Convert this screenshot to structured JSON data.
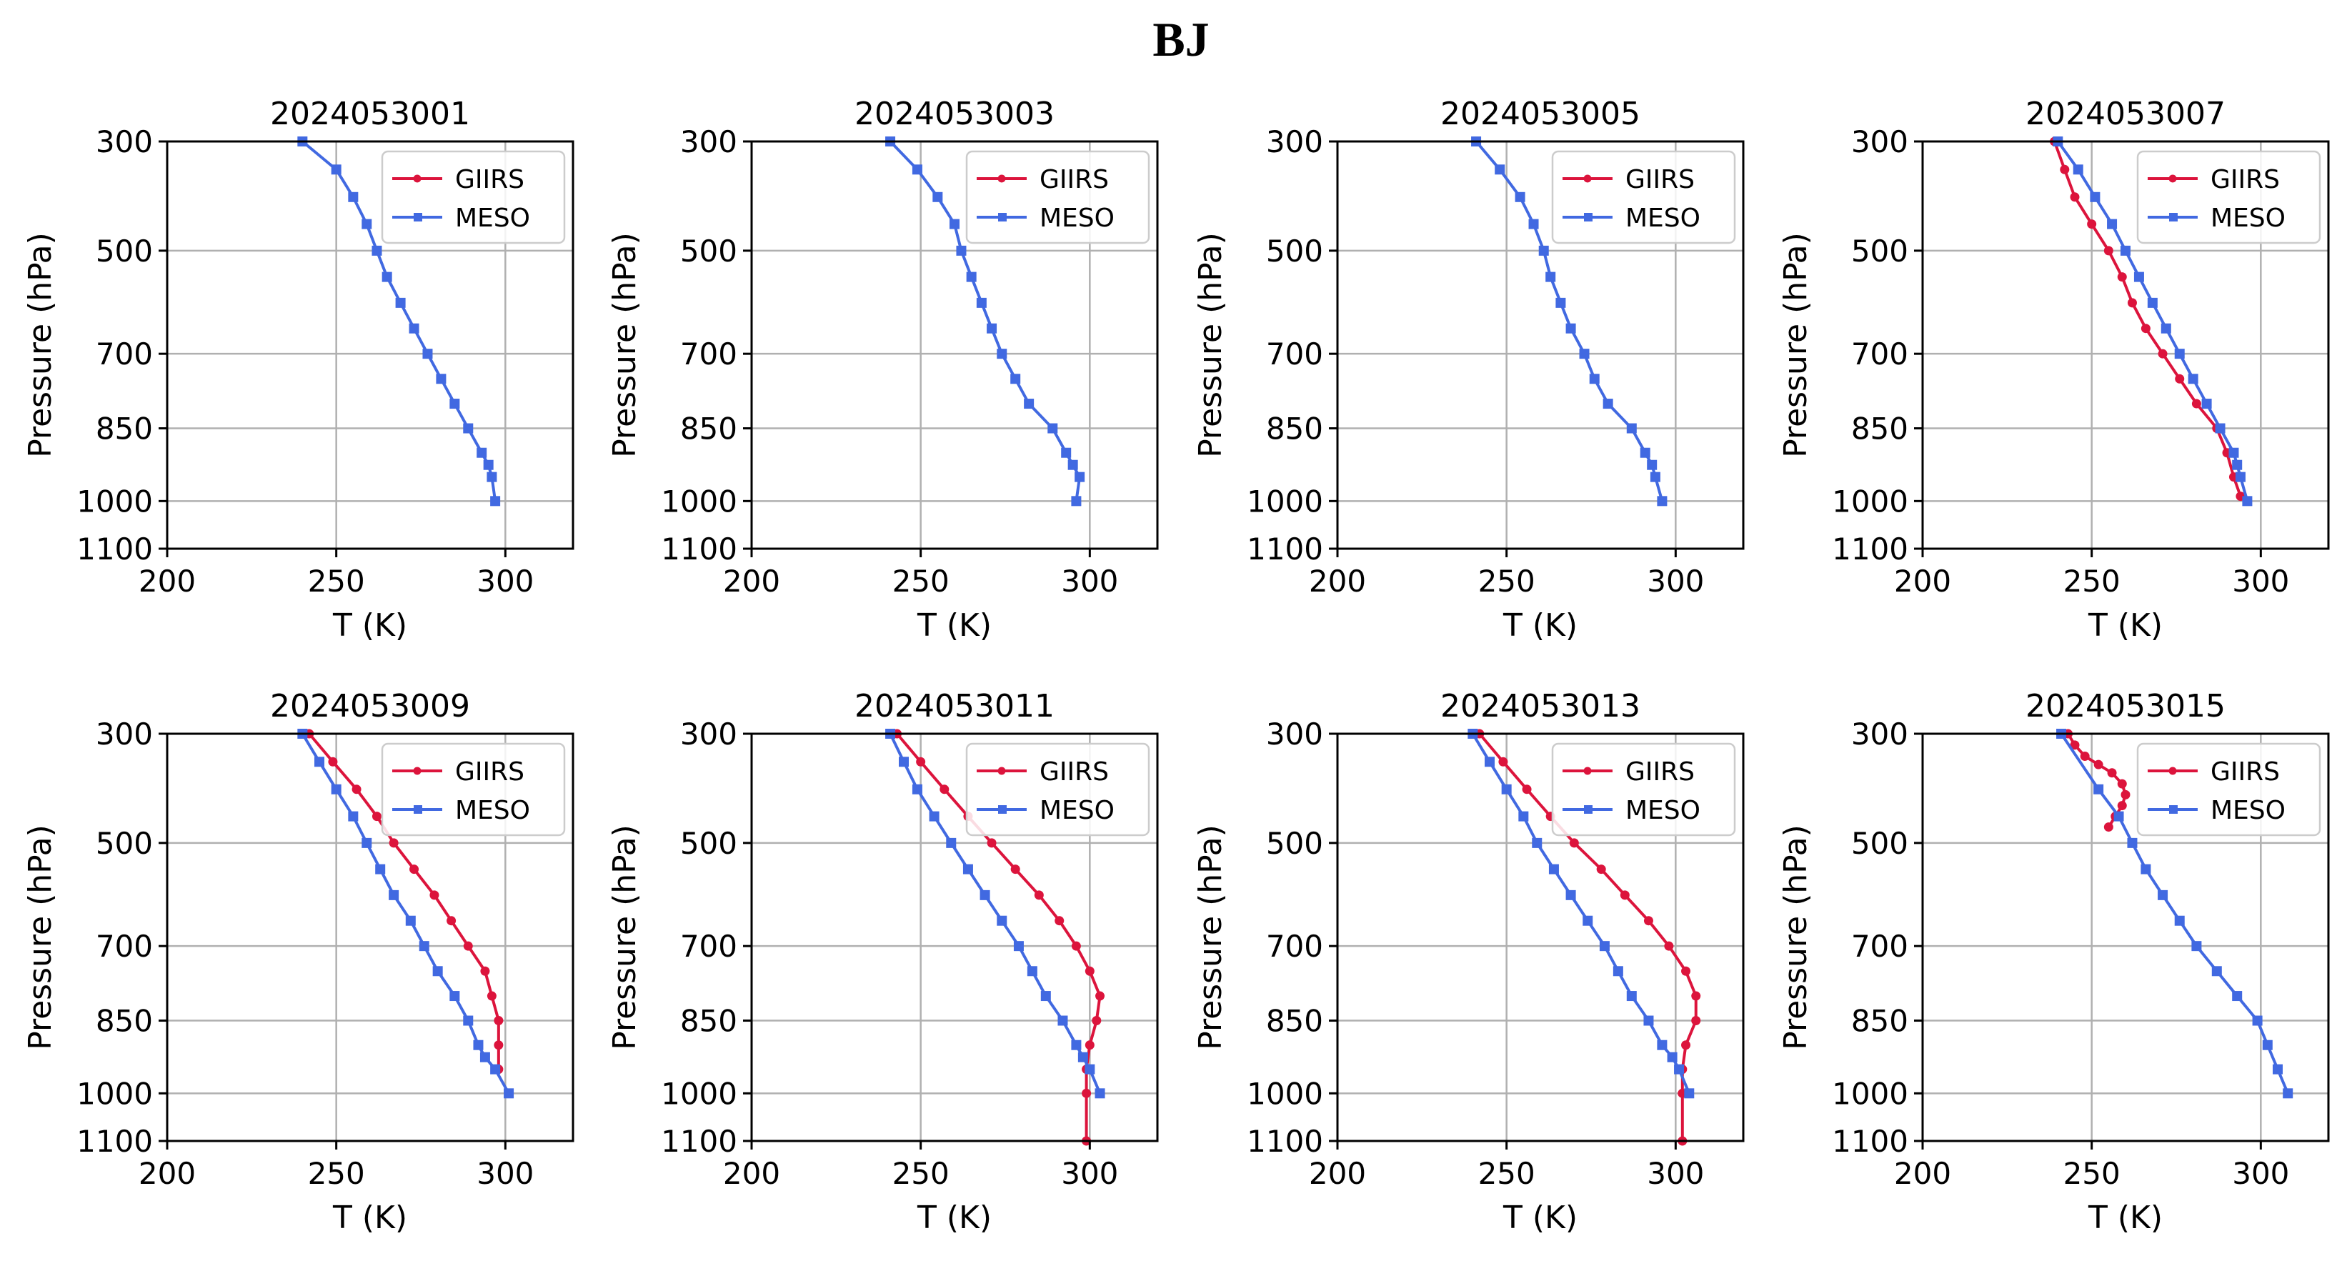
{
  "figure_title": "BJ",
  "colors": {
    "GIIRS": "#dc143c",
    "MESO": "#4169e1"
  },
  "chart_data": [
    {
      "type": "line",
      "title": "2024053001",
      "xlabel": "T (K)",
      "ylabel": "Pressure (hPa)",
      "xlim": [
        200,
        320
      ],
      "ylim": [
        1100,
        300
      ],
      "xticks": [
        200,
        250,
        300
      ],
      "yticks": [
        300,
        500,
        700,
        850,
        1000,
        1100
      ],
      "legend": [
        "GIIRS",
        "MESO"
      ],
      "legend_position": "upper-right",
      "grid": true,
      "series": [
        {
          "name": "MESO",
          "marker": "square",
          "T": [
            240,
            250,
            255,
            259,
            262,
            265,
            269,
            273,
            277,
            281,
            285,
            289,
            293,
            295,
            296,
            297
          ],
          "p": [
            300,
            350,
            400,
            450,
            500,
            550,
            600,
            650,
            700,
            750,
            800,
            850,
            900,
            925,
            950,
            1000
          ]
        }
      ]
    },
    {
      "type": "line",
      "title": "2024053003",
      "xlabel": "T (K)",
      "ylabel": "Pressure (hPa)",
      "xlim": [
        200,
        320
      ],
      "ylim": [
        1100,
        300
      ],
      "xticks": [
        200,
        250,
        300
      ],
      "yticks": [
        300,
        500,
        700,
        850,
        1000,
        1100
      ],
      "legend": [
        "GIIRS",
        "MESO"
      ],
      "legend_position": "upper-right",
      "grid": true,
      "series": [
        {
          "name": "MESO",
          "marker": "square",
          "T": [
            241,
            249,
            255,
            260,
            262,
            265,
            268,
            271,
            274,
            278,
            282,
            289,
            293,
            295,
            297,
            296
          ],
          "p": [
            300,
            350,
            400,
            450,
            500,
            550,
            600,
            650,
            700,
            750,
            800,
            850,
            900,
            925,
            950,
            1000
          ]
        }
      ]
    },
    {
      "type": "line",
      "title": "2024053005",
      "xlabel": "T (K)",
      "ylabel": "Pressure (hPa)",
      "xlim": [
        200,
        320
      ],
      "ylim": [
        1100,
        300
      ],
      "xticks": [
        200,
        250,
        300
      ],
      "yticks": [
        300,
        500,
        700,
        850,
        1000,
        1100
      ],
      "legend": [
        "GIIRS",
        "MESO"
      ],
      "legend_position": "upper-right",
      "grid": true,
      "series": [
        {
          "name": "MESO",
          "marker": "square",
          "T": [
            241,
            248,
            254,
            258,
            261,
            263,
            266,
            269,
            273,
            276,
            280,
            287,
            291,
            293,
            294,
            296
          ],
          "p": [
            300,
            350,
            400,
            450,
            500,
            550,
            600,
            650,
            700,
            750,
            800,
            850,
            900,
            925,
            950,
            1000
          ]
        }
      ]
    },
    {
      "type": "line",
      "title": "2024053007",
      "xlabel": "T (K)",
      "ylabel": "Pressure (hPa)",
      "xlim": [
        200,
        320
      ],
      "ylim": [
        1100,
        300
      ],
      "xticks": [
        200,
        250,
        300
      ],
      "yticks": [
        300,
        500,
        700,
        850,
        1000,
        1100
      ],
      "legend": [
        "GIIRS",
        "MESO"
      ],
      "legend_position": "upper-right",
      "grid": true,
      "series": [
        {
          "name": "GIIRS",
          "marker": "dot",
          "T": [
            239,
            242,
            245,
            250,
            255,
            259,
            262,
            266,
            271,
            276,
            281,
            287,
            290,
            292,
            294
          ],
          "p": [
            300,
            350,
            400,
            450,
            500,
            550,
            600,
            650,
            700,
            750,
            800,
            850,
            900,
            950,
            990
          ]
        },
        {
          "name": "MESO",
          "marker": "square",
          "T": [
            240,
            246,
            251,
            256,
            260,
            264,
            268,
            272,
            276,
            280,
            284,
            288,
            292,
            293,
            294,
            296
          ],
          "p": [
            300,
            350,
            400,
            450,
            500,
            550,
            600,
            650,
            700,
            750,
            800,
            850,
            900,
            925,
            950,
            1000
          ]
        }
      ]
    },
    {
      "type": "line",
      "title": "2024053009",
      "xlabel": "T (K)",
      "ylabel": "Pressure (hPa)",
      "xlim": [
        200,
        320
      ],
      "ylim": [
        1100,
        300
      ],
      "xticks": [
        200,
        250,
        300
      ],
      "yticks": [
        300,
        500,
        700,
        850,
        1000,
        1100
      ],
      "legend": [
        "GIIRS",
        "MESO"
      ],
      "legend_position": "upper-right",
      "grid": true,
      "series": [
        {
          "name": "GIIRS",
          "marker": "dot",
          "T": [
            242,
            249,
            256,
            262,
            267,
            273,
            279,
            284,
            289,
            294,
            296,
            298,
            298,
            298
          ],
          "p": [
            300,
            350,
            400,
            450,
            500,
            550,
            600,
            650,
            700,
            750,
            800,
            850,
            900,
            950
          ]
        },
        {
          "name": "MESO",
          "marker": "square",
          "T": [
            240,
            245,
            250,
            255,
            259,
            263,
            267,
            272,
            276,
            280,
            285,
            289,
            292,
            294,
            297,
            301
          ],
          "p": [
            300,
            350,
            400,
            450,
            500,
            550,
            600,
            650,
            700,
            750,
            800,
            850,
            900,
            925,
            950,
            1000
          ]
        }
      ]
    },
    {
      "type": "line",
      "title": "2024053011",
      "xlabel": "T (K)",
      "ylabel": "Pressure (hPa)",
      "xlim": [
        200,
        320
      ],
      "ylim": [
        1100,
        300
      ],
      "xticks": [
        200,
        250,
        300
      ],
      "yticks": [
        300,
        500,
        700,
        850,
        1000,
        1100
      ],
      "legend": [
        "GIIRS",
        "MESO"
      ],
      "legend_position": "upper-right",
      "grid": true,
      "series": [
        {
          "name": "GIIRS",
          "marker": "dot",
          "T": [
            243,
            250,
            257,
            264,
            271,
            278,
            285,
            291,
            296,
            300,
            303,
            302,
            300,
            299,
            299,
            299
          ],
          "p": [
            300,
            350,
            400,
            450,
            500,
            550,
            600,
            650,
            700,
            750,
            800,
            850,
            900,
            950,
            1000,
            1100
          ]
        },
        {
          "name": "MESO",
          "marker": "square",
          "T": [
            241,
            245,
            249,
            254,
            259,
            264,
            269,
            274,
            279,
            283,
            287,
            292,
            296,
            298,
            300,
            303
          ],
          "p": [
            300,
            350,
            400,
            450,
            500,
            550,
            600,
            650,
            700,
            750,
            800,
            850,
            900,
            925,
            950,
            1000
          ]
        }
      ]
    },
    {
      "type": "line",
      "title": "2024053013",
      "xlabel": "T (K)",
      "ylabel": "Pressure (hPa)",
      "xlim": [
        200,
        320
      ],
      "ylim": [
        1100,
        300
      ],
      "xticks": [
        200,
        250,
        300
      ],
      "yticks": [
        300,
        500,
        700,
        850,
        1000,
        1100
      ],
      "legend": [
        "GIIRS",
        "MESO"
      ],
      "legend_position": "upper-right",
      "grid": true,
      "series": [
        {
          "name": "GIIRS",
          "marker": "dot",
          "T": [
            242,
            249,
            256,
            263,
            270,
            278,
            285,
            292,
            298,
            303,
            306,
            306,
            303,
            302,
            302,
            302
          ],
          "p": [
            300,
            350,
            400,
            450,
            500,
            550,
            600,
            650,
            700,
            750,
            800,
            850,
            900,
            950,
            1000,
            1100
          ]
        },
        {
          "name": "MESO",
          "marker": "square",
          "T": [
            240,
            245,
            250,
            255,
            259,
            264,
            269,
            274,
            279,
            283,
            287,
            292,
            296,
            299,
            301,
            304
          ],
          "p": [
            300,
            350,
            400,
            450,
            500,
            550,
            600,
            650,
            700,
            750,
            800,
            850,
            900,
            925,
            950,
            1000
          ]
        }
      ]
    },
    {
      "type": "line",
      "title": "2024053015",
      "xlabel": "T (K)",
      "ylabel": "Pressure (hPa)",
      "xlim": [
        200,
        320
      ],
      "ylim": [
        1100,
        300
      ],
      "xticks": [
        200,
        250,
        300
      ],
      "yticks": [
        300,
        500,
        700,
        850,
        1000,
        1100
      ],
      "legend": [
        "GIIRS",
        "MESO"
      ],
      "legend_position": "upper-right",
      "grid": true,
      "series": [
        {
          "name": "GIIRS",
          "marker": "dot",
          "T": [
            243,
            245,
            248,
            252,
            256,
            259,
            260,
            259,
            257,
            255
          ],
          "p": [
            300,
            320,
            340,
            355,
            370,
            390,
            410,
            430,
            450,
            470
          ]
        },
        {
          "name": "MESO",
          "marker": "square",
          "T": [
            241,
            252,
            258,
            262,
            266,
            271,
            276,
            281,
            287,
            293,
            299,
            302,
            305,
            308
          ],
          "p": [
            300,
            400,
            450,
            500,
            550,
            600,
            650,
            700,
            750,
            800,
            850,
            900,
            950,
            1000
          ]
        }
      ]
    }
  ]
}
